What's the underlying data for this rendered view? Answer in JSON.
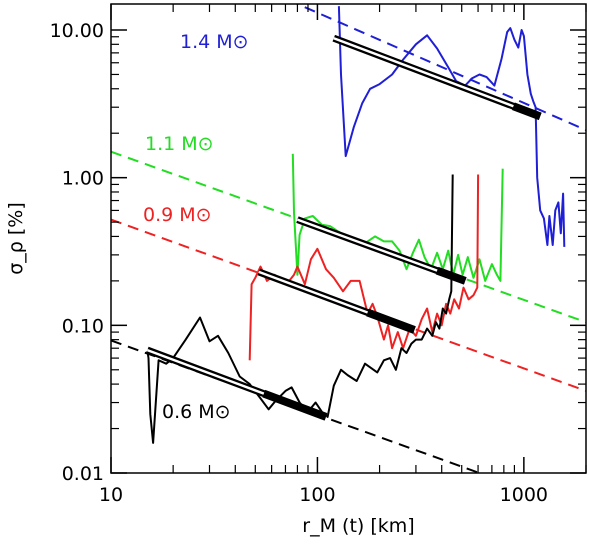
{
  "chart_data": {
    "type": "line",
    "xlabel": "r_M (t) [km]",
    "ylabel": "σ_ρ [%]",
    "xscale": "log",
    "yscale": "log",
    "xlim": [
      10,
      2000
    ],
    "ylim": [
      0.01,
      15
    ],
    "grid": false,
    "x_ticks": [
      {
        "value": 10,
        "label": "10"
      },
      {
        "value": 100,
        "label": "100"
      },
      {
        "value": 1000,
        "label": "1000"
      }
    ],
    "y_ticks": [
      {
        "value": 0.01,
        "label": "0.01"
      },
      {
        "value": 0.1,
        "label": "0.10"
      },
      {
        "value": 1,
        "label": "1.00"
      },
      {
        "value": 10,
        "label": "10.00"
      }
    ],
    "series": [
      {
        "name": "1.4 M⊙",
        "color": "#1f1fd6",
        "values": [
          [
            127,
            14.5
          ],
          [
            130,
            5
          ],
          [
            137,
            1.4
          ],
          [
            150,
            2.2
          ],
          [
            165,
            3.2
          ],
          [
            180,
            4.0
          ],
          [
            200,
            4.3
          ],
          [
            230,
            5.0
          ],
          [
            260,
            6.3
          ],
          [
            300,
            8.0
          ],
          [
            340,
            9.2
          ],
          [
            380,
            7.5
          ],
          [
            430,
            5.6
          ],
          [
            470,
            4.5
          ],
          [
            520,
            4.2
          ],
          [
            560,
            4.7
          ],
          [
            610,
            5.0
          ],
          [
            660,
            4.8
          ],
          [
            720,
            4.2
          ],
          [
            780,
            6.4
          ],
          [
            830,
            9.7
          ],
          [
            860,
            10.3
          ],
          [
            900,
            8.6
          ],
          [
            940,
            7.6
          ],
          [
            975,
            10.0
          ],
          [
            1000,
            9.1
          ],
          [
            1040,
            5.0
          ],
          [
            1080,
            3.7
          ],
          [
            1110,
            3.3
          ],
          [
            1140,
            3.0
          ],
          [
            1160,
            1.0
          ],
          [
            1200,
            0.6
          ],
          [
            1250,
            0.53
          ],
          [
            1300,
            0.35
          ],
          [
            1330,
            0.55
          ],
          [
            1380,
            0.35
          ],
          [
            1420,
            0.6
          ],
          [
            1470,
            0.68
          ],
          [
            1510,
            0.42
          ],
          [
            1550,
            0.78
          ],
          [
            1570,
            0.34
          ]
        ]
      },
      {
        "name": "1.1 M⊙",
        "color": "#22dd22",
        "values": [
          [
            76,
            1.45
          ],
          [
            77,
            0.58
          ],
          [
            80,
            0.22
          ],
          [
            82,
            0.41
          ],
          [
            87,
            0.53
          ],
          [
            95,
            0.55
          ],
          [
            105,
            0.48
          ],
          [
            115,
            0.47
          ],
          [
            130,
            0.42
          ],
          [
            150,
            0.38
          ],
          [
            170,
            0.36
          ],
          [
            190,
            0.4
          ],
          [
            210,
            0.37
          ],
          [
            230,
            0.37
          ],
          [
            250,
            0.32
          ],
          [
            270,
            0.24
          ],
          [
            290,
            0.31
          ],
          [
            310,
            0.38
          ],
          [
            330,
            0.29
          ],
          [
            355,
            0.24
          ],
          [
            380,
            0.31
          ],
          [
            405,
            0.24
          ],
          [
            430,
            0.32
          ],
          [
            455,
            0.22
          ],
          [
            480,
            0.3
          ],
          [
            505,
            0.22
          ],
          [
            535,
            0.29
          ],
          [
            570,
            0.21
          ],
          [
            610,
            0.28
          ],
          [
            650,
            0.2
          ],
          [
            700,
            0.26
          ],
          [
            740,
            0.22
          ],
          [
            770,
            0.2
          ],
          [
            790,
            1.15
          ]
        ]
      },
      {
        "name": "0.9 M⊙",
        "color": "#ee2222",
        "values": [
          [
            47,
            0.058
          ],
          [
            48,
            0.19
          ],
          [
            50,
            0.21
          ],
          [
            53,
            0.25
          ],
          [
            57,
            0.2
          ],
          [
            62,
            0.22
          ],
          [
            68,
            0.2
          ],
          [
            73,
            0.2
          ],
          [
            77,
            0.22
          ],
          [
            80,
            0.25
          ],
          [
            87,
            0.19
          ],
          [
            93,
            0.28
          ],
          [
            100,
            0.33
          ],
          [
            110,
            0.24
          ],
          [
            120,
            0.21
          ],
          [
            133,
            0.17
          ],
          [
            145,
            0.2
          ],
          [
            160,
            0.2
          ],
          [
            175,
            0.12
          ],
          [
            185,
            0.14
          ],
          [
            195,
            0.115
          ],
          [
            210,
            0.08
          ],
          [
            220,
            0.1
          ],
          [
            230,
            0.07
          ],
          [
            245,
            0.09
          ],
          [
            260,
            0.07
          ],
          [
            280,
            0.095
          ],
          [
            300,
            0.085
          ],
          [
            320,
            0.11
          ],
          [
            340,
            0.13
          ],
          [
            360,
            0.09
          ],
          [
            380,
            0.12
          ],
          [
            400,
            0.1
          ],
          [
            420,
            0.14
          ],
          [
            440,
            0.12
          ],
          [
            460,
            0.15
          ],
          [
            485,
            0.13
          ],
          [
            510,
            0.18
          ],
          [
            540,
            0.15
          ],
          [
            570,
            0.16
          ],
          [
            595,
            0.18
          ],
          [
            600,
            1.05
          ]
        ]
      },
      {
        "name": "0.6 M⊙",
        "color": "#000000",
        "values": [
          [
            15,
            0.067
          ],
          [
            15.2,
            0.06
          ],
          [
            15.5,
            0.025
          ],
          [
            16,
            0.016
          ],
          [
            17,
            0.058
          ],
          [
            18.5,
            0.055
          ],
          [
            20,
            0.06
          ],
          [
            23,
            0.08
          ],
          [
            27,
            0.113
          ],
          [
            30,
            0.078
          ],
          [
            33,
            0.085
          ],
          [
            37,
            0.065
          ],
          [
            42,
            0.045
          ],
          [
            47,
            0.04
          ],
          [
            53,
            0.032
          ],
          [
            58,
            0.027
          ],
          [
            63,
            0.031
          ],
          [
            70,
            0.036
          ],
          [
            75,
            0.038
          ],
          [
            82,
            0.03
          ],
          [
            90,
            0.026
          ],
          [
            98,
            0.03
          ],
          [
            105,
            0.026
          ],
          [
            112,
            0.024
          ],
          [
            120,
            0.039
          ],
          [
            130,
            0.05
          ],
          [
            140,
            0.046
          ],
          [
            155,
            0.042
          ],
          [
            170,
            0.055
          ],
          [
            180,
            0.052
          ],
          [
            195,
            0.048
          ],
          [
            210,
            0.058
          ],
          [
            225,
            0.06
          ],
          [
            240,
            0.05
          ],
          [
            255,
            0.07
          ],
          [
            270,
            0.065
          ],
          [
            285,
            0.075
          ],
          [
            300,
            0.08
          ],
          [
            320,
            0.08
          ],
          [
            340,
            0.095
          ],
          [
            360,
            0.085
          ],
          [
            375,
            0.105
          ],
          [
            390,
            0.095
          ],
          [
            405,
            0.13
          ],
          [
            420,
            0.12
          ],
          [
            435,
            0.15
          ],
          [
            445,
            0.17
          ],
          [
            452,
            1.05
          ]
        ]
      }
    ],
    "annotations": [
      {
        "text": "1.4 M⊙",
        "color": "#1f1fd6"
      },
      {
        "text": "1.1 M⊙",
        "color": "#22dd22"
      },
      {
        "text": "0.9 M⊙",
        "color": "#ee2222"
      },
      {
        "text": "0.6 M⊙",
        "color": "#000000"
      }
    ],
    "dashed_lines": [
      {
        "color": "#1f1fd6",
        "from": [
          50,
          20
        ],
        "to": [
          2000,
          2.1
        ]
      },
      {
        "color": "#22dd22",
        "from": [
          10,
          1.5
        ],
        "to": [
          2000,
          0.105
        ]
      },
      {
        "color": "#ee2222",
        "from": [
          10,
          0.52
        ],
        "to": [
          2000,
          0.036
        ]
      },
      {
        "color": "#000000",
        "from": [
          10,
          0.079
        ],
        "to": [
          2000,
          0.0055
        ]
      }
    ],
    "fit_segments": [
      {
        "from": [
          120,
          8.8
        ],
        "to": [
          1200,
          2.6
        ],
        "thick_from": 890
      },
      {
        "from": [
          80,
          0.52
        ],
        "to": [
          520,
          0.2
        ],
        "thick_from": 380
      },
      {
        "from": [
          52,
          0.23
        ],
        "to": [
          295,
          0.093
        ],
        "thick_from": 175
      },
      {
        "from": [
          15,
          0.068
        ],
        "to": [
          110,
          0.024
        ],
        "thick_from": 55
      }
    ]
  }
}
